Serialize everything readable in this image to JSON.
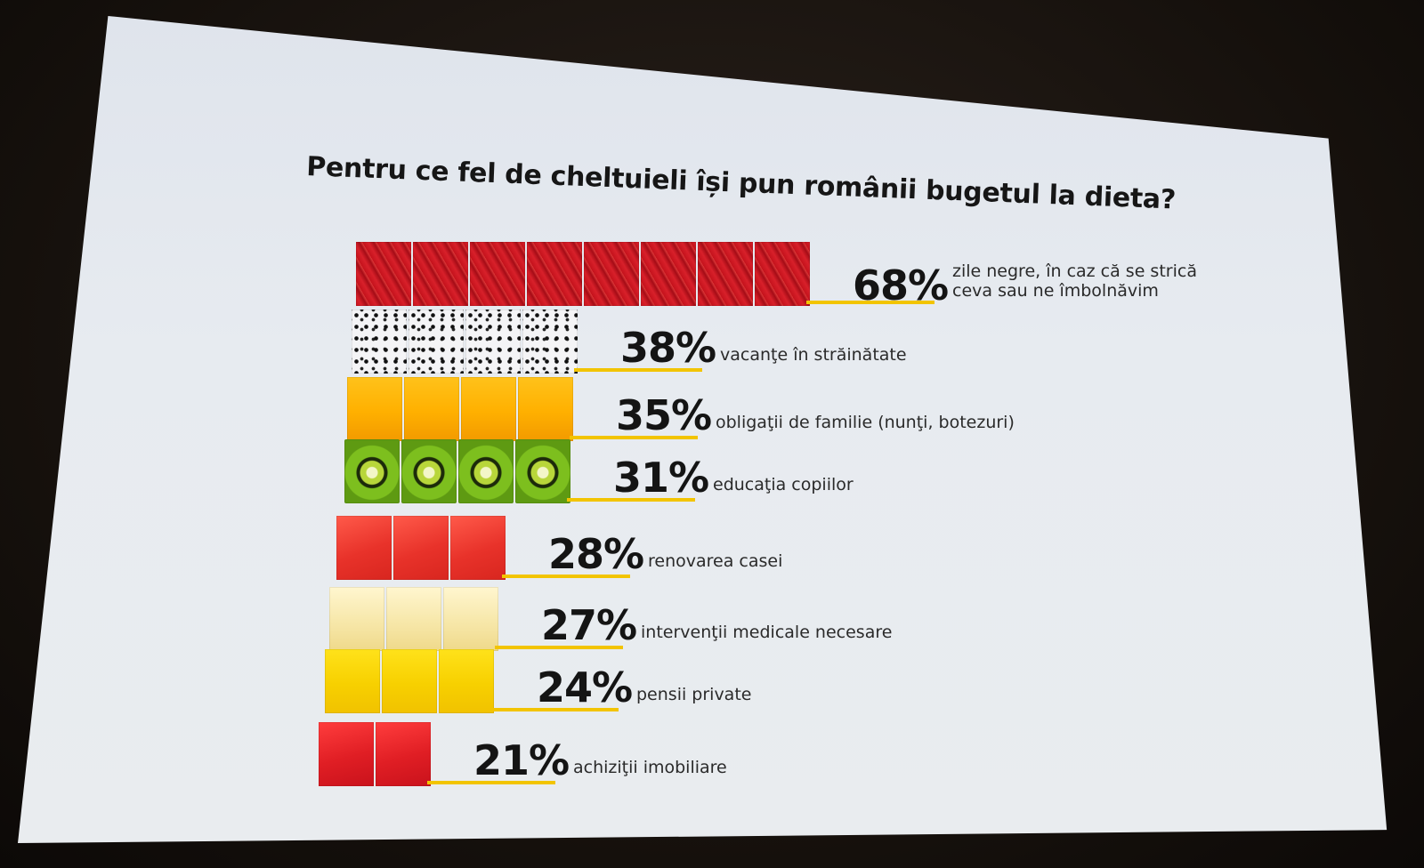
{
  "chart_data": {
    "type": "bar",
    "title": "Pentru ce fel de cheltuieli își pun românii bugetul la dieta?",
    "categories": [
      "zile negre, în caz că se strică ceva sau ne îmbolnăvim",
      "vacanţe în străinătate",
      "obligaţii de familie (nunţi, botezuri)",
      "educaţia copiilor",
      "renovarea casei",
      "intervenţii medicale necesare",
      "pensii private",
      "achiziţii imobiliare"
    ],
    "values": [
      68,
      38,
      35,
      31,
      28,
      27,
      24,
      21
    ],
    "value_labels": [
      "68%",
      "38%",
      "35%",
      "31%",
      "28%",
      "27%",
      "24%",
      "21%"
    ],
    "label_lines": [
      [
        "zile negre, în caz că se strică",
        "ceva sau ne îmbolnăvim"
      ],
      [
        "vacanţe în străinătate"
      ],
      [
        "obligaţii de familie (nunţi, botezuri)"
      ],
      [
        "educaţia copiilor"
      ],
      [
        "renovarea casei"
      ],
      [
        "intervenţii medicale necesare"
      ],
      [
        "pensii private"
      ],
      [
        "achiziţii imobiliare"
      ]
    ],
    "bar_fills": [
      "strawberry",
      "dragon-fruit",
      "mango",
      "kiwi",
      "watermelon",
      "pineapple",
      "lemon",
      "grapefruit"
    ],
    "underline_color": "#f2c400"
  }
}
